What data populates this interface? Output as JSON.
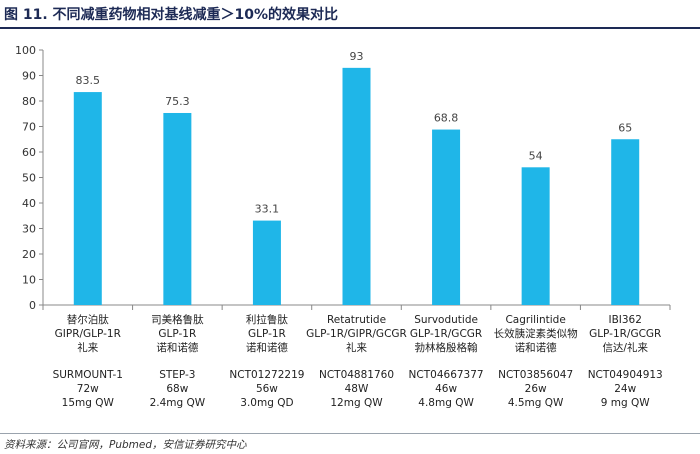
{
  "header": {
    "title": "图 11. 不同减重药物相对基线减重＞10%的效果对比"
  },
  "footer": {
    "source": "资料来源：公司官网，Pubmed，安信证券研究中心"
  },
  "colors": {
    "bar": "#1fb6e8",
    "title": "#1d2a55",
    "axis": "#888888"
  },
  "chart_data": {
    "type": "bar",
    "title": "",
    "xlabel": "",
    "ylabel": "",
    "ylim": [
      0,
      100
    ],
    "yticks": [
      0,
      10,
      20,
      30,
      40,
      50,
      60,
      70,
      80,
      90,
      100
    ],
    "grid": false,
    "legend": "none",
    "categories": [
      "替尔泊肽",
      "司美格鲁肽",
      "利拉鲁肽",
      "Retatrutide",
      "Survodutide",
      "Cagrilintide",
      "IBI362"
    ],
    "category_details": [
      [
        "替尔泊肽",
        "GIPR/GLP-1R",
        "礼来",
        "",
        "SURMOUNT-1",
        "72w",
        "15mg QW"
      ],
      [
        "司美格鲁肽",
        "GLP-1R",
        "诺和诺德",
        "",
        "STEP-3",
        "68w",
        "2.4mg QW"
      ],
      [
        "利拉鲁肽",
        "GLP-1R",
        "诺和诺德",
        "",
        "NCT01272219",
        "56w",
        "3.0mg QD"
      ],
      [
        "Retatrutide",
        "GLP-1R/GIPR/GCGR",
        "礼来",
        "",
        "NCT04881760",
        "48W",
        "12mg QW"
      ],
      [
        "Survodutide",
        "GLP-1R/GCGR",
        "勃林格殷格翰",
        "",
        "NCT04667377",
        "46w",
        "4.8mg QW"
      ],
      [
        "Cagrilintide",
        "长效胰淀素类似物",
        "诺和诺德",
        "",
        "NCT03856047",
        "26w",
        "4.5mg QW"
      ],
      [
        "IBI362",
        "GLP-1R/GCGR",
        "信达/礼来",
        "",
        "NCT04904913",
        "24w",
        "9 mg QW"
      ]
    ],
    "values": [
      83.5,
      75.3,
      33.1,
      93,
      68.8,
      54,
      65
    ],
    "data_labels": [
      "83.5",
      "75.3",
      "33.1",
      "93",
      "68.8",
      "54",
      "65"
    ]
  }
}
